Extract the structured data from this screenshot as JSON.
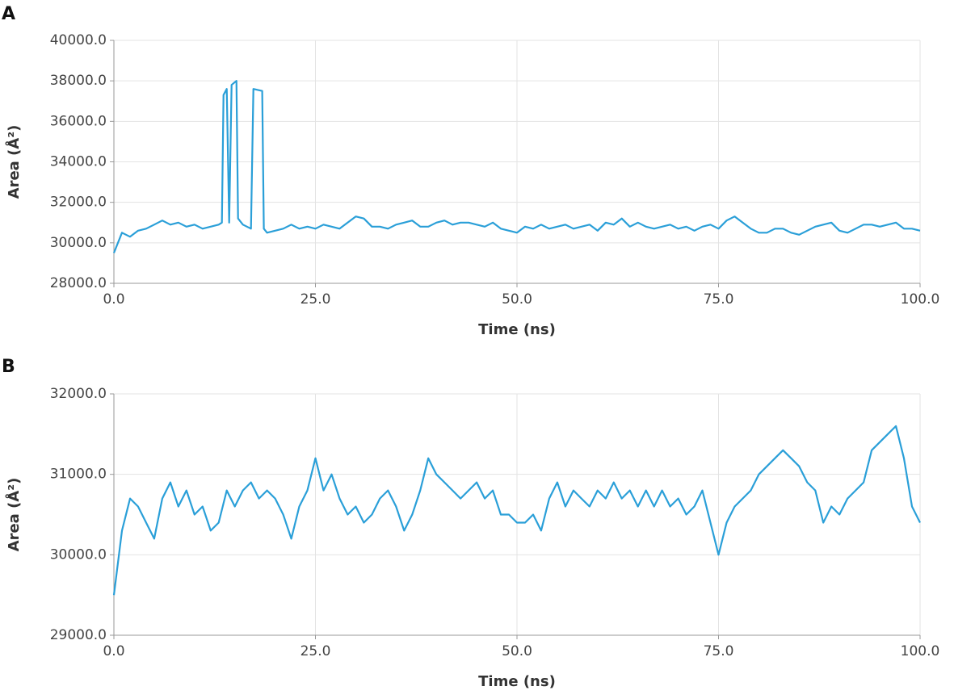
{
  "chart_data": [
    {
      "type": "line",
      "panel": "A",
      "x_label": "Time (ns)",
      "y_label": "Area (Å²)",
      "color": "#2a9fd8",
      "grid": true,
      "xlim": [
        0,
        100
      ],
      "ylim": [
        28000,
        40000
      ],
      "xticks": [
        {
          "value": 0,
          "label": "0.0"
        },
        {
          "value": 25,
          "label": "25.0"
        },
        {
          "value": 50,
          "label": "50.0"
        },
        {
          "value": 75,
          "label": "75.0"
        },
        {
          "value": 100,
          "label": "100.0"
        }
      ],
      "yticks": [
        {
          "value": 28000,
          "label": "28000.0"
        },
        {
          "value": 30000,
          "label": "30000.0"
        },
        {
          "value": 32000,
          "label": "32000.0"
        },
        {
          "value": 34000,
          "label": "34000.0"
        },
        {
          "value": 36000,
          "label": "36000.0"
        },
        {
          "value": 38000,
          "label": "38000.0"
        },
        {
          "value": 40000,
          "label": "40000.0"
        }
      ],
      "x": [
        0,
        1,
        2,
        3,
        4,
        5,
        6,
        7,
        8,
        9,
        10,
        11,
        12,
        13,
        13.4,
        13.6,
        14,
        14.3,
        14.6,
        15.2,
        15.4,
        16,
        17,
        17.3,
        18.4,
        18.6,
        19,
        20,
        21,
        22,
        23,
        24,
        25,
        26,
        27,
        28,
        29,
        30,
        31,
        32,
        33,
        34,
        35,
        36,
        37,
        38,
        39,
        40,
        41,
        42,
        43,
        44,
        45,
        46,
        47,
        48,
        49,
        50,
        51,
        52,
        53,
        54,
        55,
        56,
        57,
        58,
        59,
        60,
        61,
        62,
        63,
        64,
        65,
        66,
        67,
        68,
        69,
        70,
        71,
        72,
        73,
        74,
        75,
        76,
        77,
        78,
        79,
        80,
        81,
        82,
        83,
        84,
        85,
        86,
        87,
        88,
        89,
        90,
        91,
        92,
        93,
        94,
        95,
        96,
        97,
        98,
        99,
        100
      ],
      "values": [
        29500,
        30500,
        30300,
        30600,
        30700,
        30900,
        31100,
        30900,
        31000,
        30800,
        30900,
        30700,
        30800,
        30900,
        31000,
        37300,
        37600,
        31000,
        37800,
        38000,
        31200,
        30900,
        30700,
        37600,
        37500,
        30700,
        30500,
        30600,
        30700,
        30900,
        30700,
        30800,
        30700,
        30900,
        30800,
        30700,
        31000,
        31300,
        31200,
        30800,
        30800,
        30700,
        30900,
        31000,
        31100,
        30800,
        30800,
        31000,
        31100,
        30900,
        31000,
        31000,
        30900,
        30800,
        31000,
        30700,
        30600,
        30500,
        30800,
        30700,
        30900,
        30700,
        30800,
        30900,
        30700,
        30800,
        30900,
        30600,
        31000,
        30900,
        31200,
        30800,
        31000,
        30800,
        30700,
        30800,
        30900,
        30700,
        30800,
        30600,
        30800,
        30900,
        30700,
        31100,
        31300,
        31000,
        30700,
        30500,
        30500,
        30700,
        30700,
        30500,
        30400,
        30600,
        30800,
        30900,
        31000,
        30600,
        30500,
        30700,
        30900,
        30900,
        30800,
        30900,
        31000,
        30700,
        30700,
        30600
      ]
    },
    {
      "type": "line",
      "panel": "B",
      "x_label": "Time (ns)",
      "y_label": "Area (Å²)",
      "color": "#2a9fd8",
      "grid": true,
      "xlim": [
        0,
        100
      ],
      "ylim": [
        29000,
        32000
      ],
      "xticks": [
        {
          "value": 0,
          "label": "0.0"
        },
        {
          "value": 25,
          "label": "25.0"
        },
        {
          "value": 50,
          "label": "50.0"
        },
        {
          "value": 75,
          "label": "75.0"
        },
        {
          "value": 100,
          "label": "100.0"
        }
      ],
      "yticks": [
        {
          "value": 29000,
          "label": "29000.0"
        },
        {
          "value": 30000,
          "label": "30000.0"
        },
        {
          "value": 31000,
          "label": "31000.0"
        },
        {
          "value": 32000,
          "label": "32000.0"
        }
      ],
      "x": [
        0,
        1,
        2,
        3,
        4,
        5,
        6,
        7,
        8,
        9,
        10,
        11,
        12,
        13,
        14,
        15,
        16,
        17,
        18,
        19,
        20,
        21,
        22,
        23,
        24,
        25,
        26,
        27,
        28,
        29,
        30,
        31,
        32,
        33,
        34,
        35,
        36,
        37,
        38,
        39,
        40,
        41,
        42,
        43,
        44,
        45,
        46,
        47,
        48,
        49,
        50,
        51,
        52,
        53,
        54,
        55,
        56,
        57,
        58,
        59,
        60,
        61,
        62,
        63,
        64,
        65,
        66,
        67,
        68,
        69,
        70,
        71,
        72,
        73,
        74,
        75,
        76,
        77,
        78,
        79,
        80,
        81,
        82,
        83,
        84,
        85,
        86,
        87,
        88,
        89,
        90,
        91,
        92,
        93,
        94,
        95,
        96,
        97,
        98,
        99,
        100
      ],
      "values": [
        29500,
        30300,
        30700,
        30600,
        30400,
        30200,
        30700,
        30900,
        30600,
        30800,
        30500,
        30600,
        30300,
        30400,
        30800,
        30600,
        30800,
        30900,
        30700,
        30800,
        30700,
        30500,
        30200,
        30600,
        30800,
        31200,
        30800,
        31000,
        30700,
        30500,
        30600,
        30400,
        30500,
        30700,
        30800,
        30600,
        30300,
        30500,
        30800,
        31200,
        31000,
        30900,
        30800,
        30700,
        30800,
        30900,
        30700,
        30800,
        30500,
        30500,
        30400,
        30400,
        30500,
        30300,
        30700,
        30900,
        30600,
        30800,
        30700,
        30600,
        30800,
        30700,
        30900,
        30700,
        30800,
        30600,
        30800,
        30600,
        30800,
        30600,
        30700,
        30500,
        30600,
        30800,
        30400,
        30000,
        30400,
        30600,
        30700,
        30800,
        31000,
        31100,
        31200,
        31300,
        31200,
        31100,
        30900,
        30800,
        30400,
        30600,
        30500,
        30700,
        30800,
        30900,
        31300,
        31400,
        31500,
        31600,
        31200,
        30600,
        30400
      ]
    }
  ]
}
